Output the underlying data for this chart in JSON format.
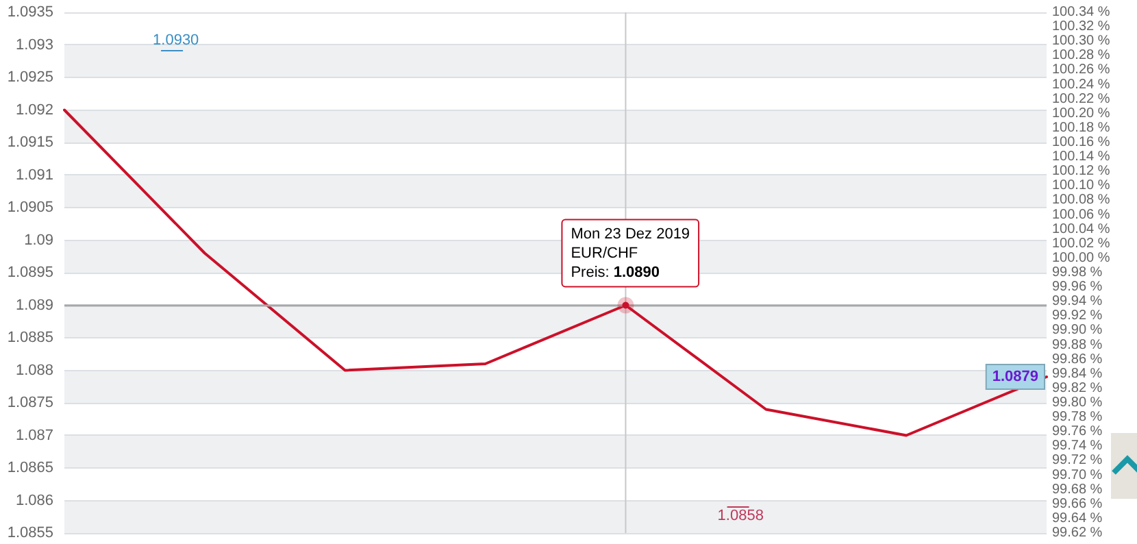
{
  "chart_data": {
    "type": "line",
    "categories": [
      null,
      null,
      null,
      null,
      null,
      null,
      null,
      null
    ],
    "series": [
      {
        "color": "#cc1029",
        "values": [
          1.092,
          1.0898,
          1.088,
          1.0881,
          1.089,
          1.0874,
          1.087,
          1.0879
        ],
        "value_labels": [
          null,
          null,
          null,
          null,
          null,
          null,
          null,
          "1.0879"
        ]
      }
    ],
    "ylim": [
      1.0855,
      1.0935
    ],
    "yticks": [
      1.0855,
      1.086,
      1.0865,
      1.087,
      1.0875,
      1.088,
      1.0885,
      1.089,
      1.0895,
      1.09,
      1.0905,
      1.091,
      1.0915,
      1.092,
      1.0925,
      1.093,
      1.0935
    ],
    "y2lim": [
      99.62,
      100.34
    ],
    "y2ticks": [
      {
        "value": 99.62,
        "label": "99.62 %"
      },
      {
        "value": 99.64,
        "label": "99.64 %"
      },
      {
        "value": 99.66,
        "label": "99.66 %"
      },
      {
        "value": 99.68,
        "label": "99.68 %"
      },
      {
        "value": 99.7,
        "label": "99.70 %"
      },
      {
        "value": 99.72,
        "label": "99.72 %"
      },
      {
        "value": 99.74,
        "label": "99.74 %"
      },
      {
        "value": 99.76,
        "label": "99.76 %"
      },
      {
        "value": 99.78,
        "label": "99.78 %"
      },
      {
        "value": 99.8,
        "label": "99.80 %"
      },
      {
        "value": 99.82,
        "label": "99.82 %"
      },
      {
        "value": 99.84,
        "label": "99.84 %"
      },
      {
        "value": 99.86,
        "label": "99.86 %"
      },
      {
        "value": 99.88,
        "label": "99.88 %"
      },
      {
        "value": 99.9,
        "label": "99.90 %"
      },
      {
        "value": 99.92,
        "label": "99.92 %"
      },
      {
        "value": 99.94,
        "label": "99.94 %"
      },
      {
        "value": 99.96,
        "label": "99.96 %"
      },
      {
        "value": 99.98,
        "label": "99.98 %"
      },
      {
        "value": 100.0,
        "label": "100.00 %"
      },
      {
        "value": 100.02,
        "label": "100.02 %"
      },
      {
        "value": 100.04,
        "label": "100.04 %"
      },
      {
        "value": 100.06,
        "label": "100.06 %"
      },
      {
        "value": 100.08,
        "label": "100.08 %"
      },
      {
        "value": 100.1,
        "label": "100.10 %"
      },
      {
        "value": 100.12,
        "label": "100.12 %"
      },
      {
        "value": 100.14,
        "label": "100.14 %"
      },
      {
        "value": 100.16,
        "label": "100.16 %"
      },
      {
        "value": 100.18,
        "label": "100.18 %"
      },
      {
        "value": 100.2,
        "label": "100.20 %"
      },
      {
        "value": 100.22,
        "label": "100.22 %"
      },
      {
        "value": 100.24,
        "label": "100.24 %"
      },
      {
        "value": 100.26,
        "label": "100.26 %"
      },
      {
        "value": 100.28,
        "label": "100.28 %"
      },
      {
        "value": 100.3,
        "label": "100.30 %"
      },
      {
        "value": 100.32,
        "label": "100.32 %"
      },
      {
        "value": 100.34,
        "label": "100.34 %"
      }
    ],
    "ref_lines": [
      {
        "axis": "y",
        "value": 1.089,
        "color": "#a8a8a8"
      }
    ],
    "annotations": [
      "1.0930",
      "1.0858",
      {
        "text": "Mon 23 Dez 2019\nEUR/CHF\nPreis: 1.0890",
        "y": 1.089
      }
    ],
    "grid": "y",
    "marker": "none",
    "line_style": "solid"
  }
}
